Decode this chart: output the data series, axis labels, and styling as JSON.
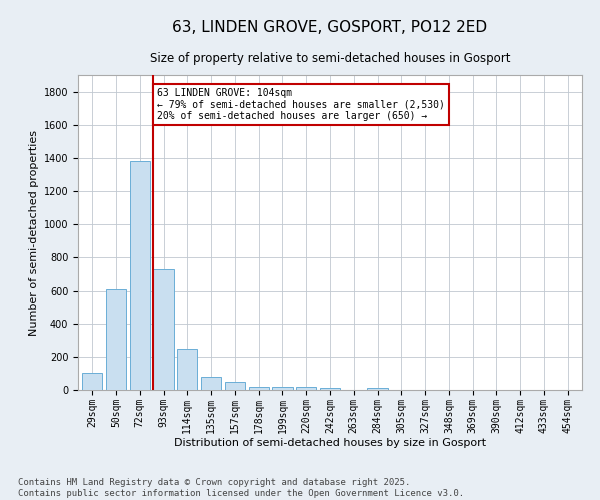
{
  "title": "63, LINDEN GROVE, GOSPORT, PO12 2ED",
  "subtitle": "Size of property relative to semi-detached houses in Gosport",
  "xlabel": "Distribution of semi-detached houses by size in Gosport",
  "ylabel": "Number of semi-detached properties",
  "categories": [
    "29sqm",
    "50sqm",
    "72sqm",
    "93sqm",
    "114sqm",
    "135sqm",
    "157sqm",
    "178sqm",
    "199sqm",
    "220sqm",
    "242sqm",
    "263sqm",
    "284sqm",
    "305sqm",
    "327sqm",
    "348sqm",
    "369sqm",
    "390sqm",
    "412sqm",
    "433sqm",
    "454sqm"
  ],
  "values": [
    100,
    610,
    1380,
    730,
    245,
    80,
    50,
    20,
    20,
    20,
    10,
    0,
    10,
    0,
    0,
    0,
    0,
    0,
    0,
    0,
    0
  ],
  "bar_color": "#c9dff0",
  "bar_edge_color": "#6aaed6",
  "red_line_index": 3,
  "ylim": [
    0,
    1900
  ],
  "yticks": [
    0,
    200,
    400,
    600,
    800,
    1000,
    1200,
    1400,
    1600,
    1800
  ],
  "annotation_title": "63 LINDEN GROVE: 104sqm",
  "annotation_line1": "← 79% of semi-detached houses are smaller (2,530)",
  "annotation_line2": "20% of semi-detached houses are larger (650) →",
  "annotation_box_color": "#c00000",
  "footer_line1": "Contains HM Land Registry data © Crown copyright and database right 2025.",
  "footer_line2": "Contains public sector information licensed under the Open Government Licence v3.0.",
  "background_color": "#e8eef4",
  "plot_bg_color": "#ffffff",
  "grid_color": "#c0c8d0",
  "title_fontsize": 11,
  "axis_label_fontsize": 8,
  "tick_fontsize": 7,
  "footer_fontsize": 6.5
}
